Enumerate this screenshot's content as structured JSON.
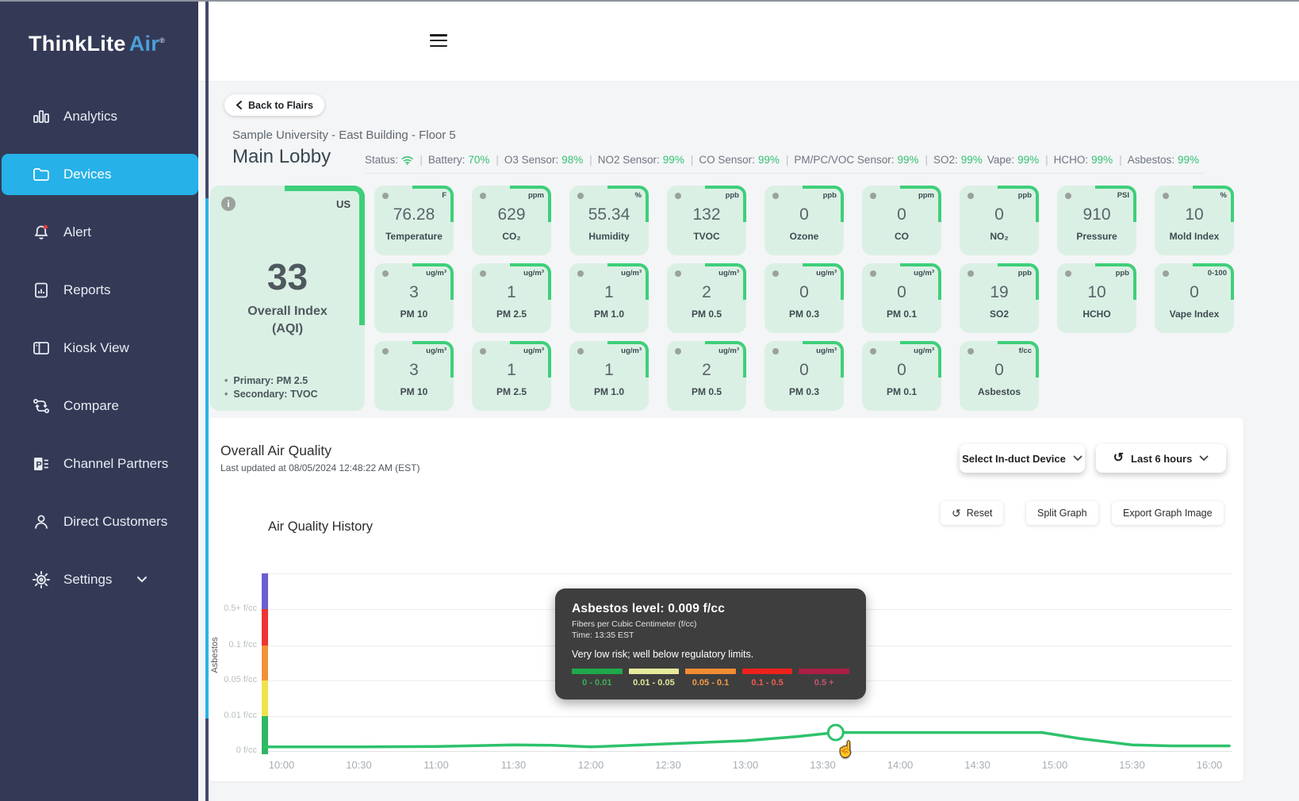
{
  "colors": {
    "accent_blue": "#26b1e8",
    "card_green": "#dbf0e4",
    "accent_green": "#3ecf7a",
    "line_green": "#2dc26b",
    "status_green": "#35c173",
    "sidebar_bg": "#343a56"
  },
  "sidebar": {
    "logo": {
      "brand": "ThinkLite",
      "product": "Air",
      "registered": "®"
    },
    "items": [
      {
        "label": "Analytics",
        "icon": "bar-chart-icon",
        "active": false
      },
      {
        "label": "Devices",
        "icon": "folder-icon",
        "active": true
      },
      {
        "label": "Alert",
        "icon": "bell-icon",
        "active": false
      },
      {
        "label": "Reports",
        "icon": "report-icon",
        "active": false
      },
      {
        "label": "Kiosk View",
        "icon": "kiosk-icon",
        "active": false
      },
      {
        "label": "Compare",
        "icon": "compare-icon",
        "active": false
      },
      {
        "label": "Channel Partners",
        "icon": "partner-icon",
        "active": false
      },
      {
        "label": "Direct Customers",
        "icon": "person-icon",
        "active": false
      },
      {
        "label": "Settings",
        "icon": "gear-icon",
        "active": false
      }
    ]
  },
  "header": {
    "back_button": "Back to Flairs",
    "breadcrumb": "Sample University - East Building - Floor 5",
    "title": "Main Lobby",
    "status": [
      {
        "label": "Status:",
        "icon": "wifi",
        "value": "",
        "sep": false
      },
      {
        "label": "Battery:",
        "value": "70%",
        "sep": true
      },
      {
        "label": "O3 Sensor:",
        "value": "98%",
        "sep": true
      },
      {
        "label": "NO2 Sensor:",
        "value": "99%",
        "sep": true
      },
      {
        "label": "CO Sensor:",
        "value": "99%",
        "sep": true
      },
      {
        "label": "PM/PC/VOC Sensor:",
        "value": "99%",
        "sep": true
      },
      {
        "label": "SO2:",
        "value": "99%",
        "sep": true
      },
      {
        "label": "Vape:",
        "value": "99%",
        "sep": false
      },
      {
        "label": "HCHO:",
        "value": "99%",
        "sep": true
      },
      {
        "label": "Asbestos:",
        "value": "99%",
        "sep": true
      }
    ]
  },
  "aqi_card": {
    "region": "US",
    "value": "33",
    "label_line1": "Overall Index",
    "label_line2": "(AQI)",
    "bullets": [
      "Primary: PM 2.5",
      "Secondary: TVOC"
    ]
  },
  "sensor_cards": [
    {
      "unit": "F",
      "value": "76.28",
      "label": "Temperature"
    },
    {
      "unit": "ppm",
      "value": "629",
      "label": "CO₂"
    },
    {
      "unit": "%",
      "value": "55.34",
      "label": "Humidity"
    },
    {
      "unit": "ppb",
      "value": "132",
      "label": "TVOC"
    },
    {
      "unit": "ppb",
      "value": "0",
      "label": "Ozone"
    },
    {
      "unit": "ppm",
      "value": "0",
      "label": "CO"
    },
    {
      "unit": "ppb",
      "value": "0",
      "label": "NO₂"
    },
    {
      "unit": "PSI",
      "value": "910",
      "label": "Pressure"
    },
    {
      "unit": "%",
      "value": "10",
      "label": "Mold Index"
    },
    {
      "unit": "ug/m³",
      "value": "3",
      "label": "PM 10"
    },
    {
      "unit": "ug/m³",
      "value": "1",
      "label": "PM 2.5"
    },
    {
      "unit": "ug/m³",
      "value": "1",
      "label": "PM 1.0"
    },
    {
      "unit": "ug/m³",
      "value": "2",
      "label": "PM 0.5"
    },
    {
      "unit": "ug/m³",
      "value": "0",
      "label": "PM 0.3"
    },
    {
      "unit": "ug/m³",
      "value": "0",
      "label": "PM 0.1"
    },
    {
      "unit": "ppb",
      "value": "19",
      "label": "SO2"
    },
    {
      "unit": "ppb",
      "value": "10",
      "label": "HCHO"
    },
    {
      "unit": "0-100",
      "value": "0",
      "label": "Vape Index"
    },
    {
      "unit": "ug/m³",
      "value": "3",
      "label": "PM 10"
    },
    {
      "unit": "ug/m³",
      "value": "1",
      "label": "PM 2.5"
    },
    {
      "unit": "ug/m³",
      "value": "1",
      "label": "PM 1.0"
    },
    {
      "unit": "ug/m³",
      "value": "2",
      "label": "PM 0.5"
    },
    {
      "unit": "ug/m³",
      "value": "0",
      "label": "PM 0.3"
    },
    {
      "unit": "ug/m³",
      "value": "0",
      "label": "PM 0.1"
    },
    {
      "unit": "f/cc",
      "value": "0",
      "label": "Asbestos"
    }
  ],
  "chart_panel": {
    "title": "Overall Air Quality",
    "last_updated": "Last updated at 08/05/2024 12:48:22 AM (EST)",
    "select_device": "Select In-duct Device",
    "time_range": "Last 6 hours",
    "reset": "Reset",
    "split": "Split Graph",
    "export": "Export Graph Image"
  },
  "chart_data": {
    "type": "line",
    "title": "Air Quality History",
    "xlabel": "",
    "ylabel": "Asbestos",
    "yticks": [
      "0 f/cc",
      "0.01 f/cc",
      "0.05 f/cc",
      "0.1 f/cc",
      "0.5+ f/cc"
    ],
    "axis_scale": "banded non-linear: equal pixel spacing between 0, 0.01, 0.05, 0.1, 0.5+ f/cc",
    "xticks": [
      "10:00",
      "10:30",
      "11:00",
      "11:30",
      "12:00",
      "12:30",
      "13:00",
      "13:30",
      "14:00",
      "14:30",
      "15:00",
      "15:30",
      "16:00"
    ],
    "grid": true,
    "legend": "none",
    "risk_bands": [
      {
        "label": "0 - 0.01",
        "color": "#2eb863"
      },
      {
        "label": "0.01 - 0.05",
        "color": "#f0e24d"
      },
      {
        "label": "0.05 - 0.1",
        "color": "#f49037"
      },
      {
        "label": "0.1 - 0.5",
        "color": "#ee3432"
      },
      {
        "label": "0.5 +",
        "color": "#6a5fd0"
      }
    ],
    "series": [
      {
        "name": "Asbestos (f/cc)",
        "color": "#2dc26b",
        "points": [
          [
            "10:00",
            0.002
          ],
          [
            "10:30",
            0.002
          ],
          [
            "11:00",
            0.0022
          ],
          [
            "11:30",
            0.003
          ],
          [
            "11:45",
            0.0028
          ],
          [
            "12:00",
            0.002
          ],
          [
            "12:30",
            0.0035
          ],
          [
            "13:00",
            0.005
          ],
          [
            "13:20",
            0.007
          ],
          [
            "13:35",
            0.009
          ],
          [
            "14:00",
            0.009
          ],
          [
            "14:30",
            0.009
          ],
          [
            "14:55",
            0.009
          ],
          [
            "15:10",
            0.006
          ],
          [
            "15:30",
            0.003
          ],
          [
            "15:45",
            0.0025
          ],
          [
            "16:00",
            0.0025
          ]
        ]
      }
    ],
    "highlight_point": {
      "x": "13:35",
      "y": 0.009
    }
  },
  "tooltip": {
    "title": "Asbestos level: 0.009 f/cc",
    "subtitle": "Fibers per Cubic Centimeter (f/cc)",
    "time": "Time: 13:35 EST",
    "risk": "Very low risk; well below regulatory limits.",
    "scale": [
      {
        "range": "0 - 0.01",
        "color": "#1fa94b",
        "label_color": "#3fae57"
      },
      {
        "range": "0.01 - 0.05",
        "color": "#e6ea9b",
        "label_color": "#e3e79a"
      },
      {
        "range": "0.05 - 0.1",
        "color": "#f28c33",
        "label_color": "#f09a4c"
      },
      {
        "range": "0.1 - 0.5",
        "color": "#ee221c",
        "label_color": "#ef5c4e"
      },
      {
        "range": "0.5 +",
        "color": "#ab1f45",
        "label_color": "#c25672"
      }
    ]
  }
}
